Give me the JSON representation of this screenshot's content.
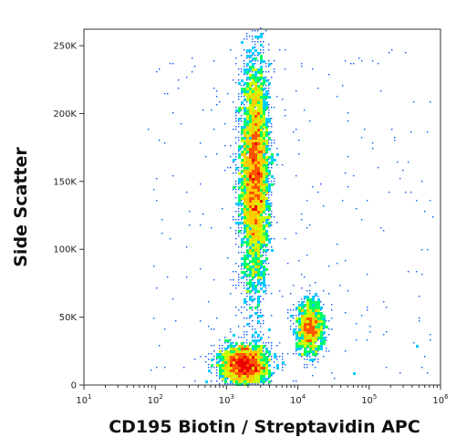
{
  "chart_data": {
    "type": "scatter",
    "subtype": "flow-cytometry-density-dot-plot",
    "xlabel": "CD195 Biotin / Streptavidin APC",
    "ylabel": "Side Scatter",
    "x_scale": "log",
    "xlim": [
      10,
      1000000
    ],
    "ylim": [
      0,
      262144
    ],
    "x_ticks": [
      {
        "value": 10,
        "base": "10",
        "exp": "1"
      },
      {
        "value": 100,
        "base": "10",
        "exp": "2"
      },
      {
        "value": 1000,
        "base": "10",
        "exp": "3"
      },
      {
        "value": 10000,
        "base": "10",
        "exp": "4"
      },
      {
        "value": 100000,
        "base": "10",
        "exp": "5"
      },
      {
        "value": 1000000,
        "base": "10",
        "exp": "6"
      }
    ],
    "y_ticks": [
      {
        "value": 0,
        "label": "0"
      },
      {
        "value": 50000,
        "label": "50K"
      },
      {
        "value": 100000,
        "label": "100K"
      },
      {
        "value": 150000,
        "label": "150K"
      },
      {
        "value": 200000,
        "label": "200K"
      },
      {
        "value": 250000,
        "label": "250K"
      }
    ],
    "populations": [
      {
        "x_center": 2500,
        "y_center": 155000,
        "x_spread_log": 0.1,
        "y_spread": 42000,
        "count": 5200
      },
      {
        "x_center": 1800,
        "y_center": 15000,
        "x_spread_log": 0.17,
        "y_spread": 7500,
        "count": 2600
      },
      {
        "x_center": 15000,
        "y_center": 42000,
        "x_spread_log": 0.1,
        "y_spread": 10000,
        "count": 1200
      }
    ],
    "grid": false,
    "colormap": [
      "#0000cc",
      "#0055ff",
      "#00ccff",
      "#00ff66",
      "#ccff00",
      "#ffcc00",
      "#ff5500",
      "#ee0000"
    ]
  }
}
